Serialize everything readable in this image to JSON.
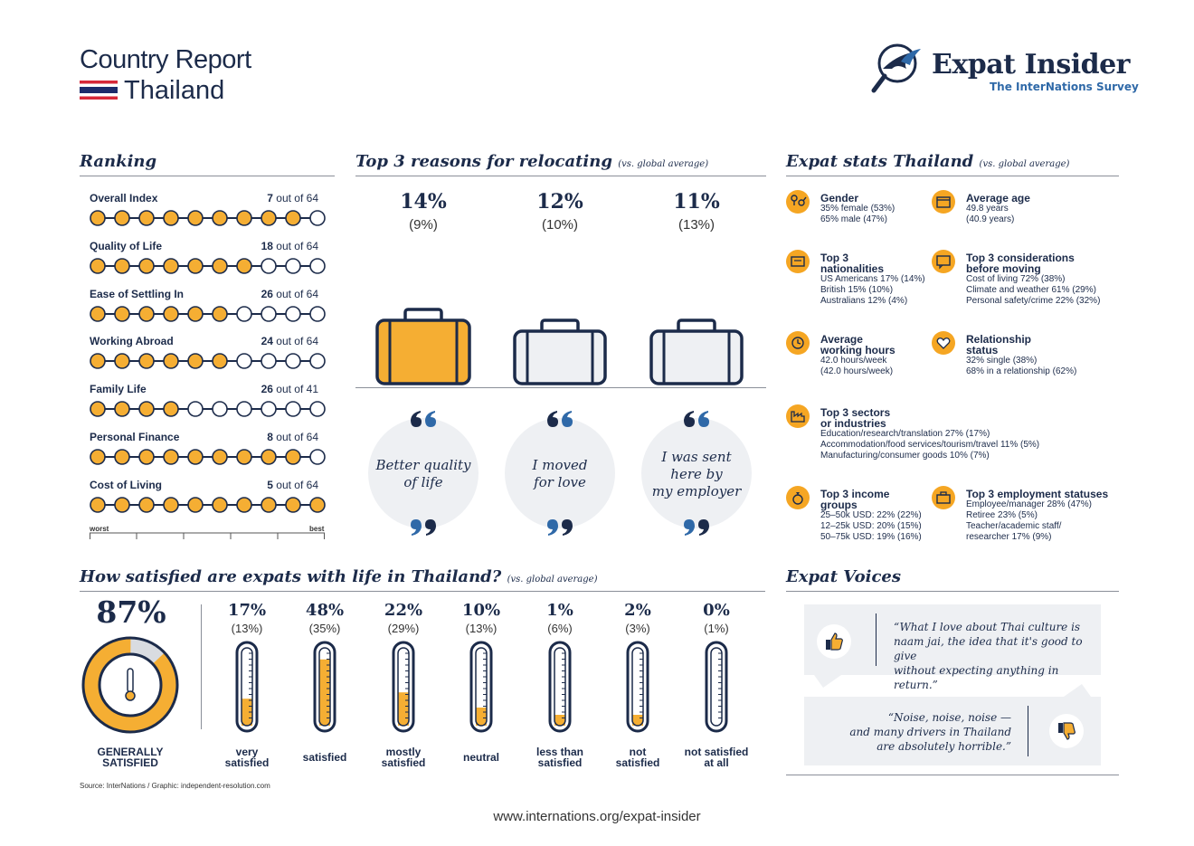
{
  "header": {
    "title": "Country Report",
    "country": "Thailand",
    "logo_name": "Expat Insider",
    "logo_sub": "The InterNations Survey"
  },
  "ranking": {
    "title": "Ranking",
    "items": [
      {
        "label": "Overall Index",
        "rank": "7",
        "suffix": "out of 64",
        "filled": 9
      },
      {
        "label": "Quality of Life",
        "rank": "18",
        "suffix": "out of 64",
        "filled": 7
      },
      {
        "label": "Ease of Settling In",
        "rank": "26",
        "suffix": "out of 64",
        "filled": 6
      },
      {
        "label": "Working Abroad",
        "rank": "24",
        "suffix": "out of 64",
        "filled": 6
      },
      {
        "label": "Family Life",
        "rank": "26",
        "suffix": "out of 41",
        "filled": 4
      },
      {
        "label": "Personal Finance",
        "rank": "8",
        "suffix": "out of 64",
        "filled": 9
      },
      {
        "label": "Cost of Living",
        "rank": "5",
        "suffix": "out of 64",
        "filled": 10
      }
    ],
    "worst": "worst",
    "best": "best"
  },
  "reasons": {
    "title": "Top 3 reasons for relocating",
    "subtitle": "(vs. global average)",
    "items": [
      {
        "pct": "14%",
        "avg": "(9%)",
        "line1": "Better quality",
        "line2": "of life",
        "line3": "",
        "color": "#f5ae33"
      },
      {
        "pct": "12%",
        "avg": "(10%)",
        "line1": "I moved",
        "line2": "for love",
        "line3": "",
        "color": "#eef0f3"
      },
      {
        "pct": "11%",
        "avg": "(13%)",
        "line1": "I was sent",
        "line2": "here by",
        "line3": "my employer",
        "color": "#eef0f3"
      }
    ]
  },
  "stats": {
    "title": "Expat stats Thailand",
    "subtitle": "(vs. global average)",
    "gender": {
      "h1": "Gender",
      "t1": "35% female (53%)",
      "t2": "65% male (47%)",
      "icon": "gender-icon"
    },
    "age": {
      "h1": "Average age",
      "t1": "49.8 years",
      "t2": "(40.9 years)",
      "icon": "calendar-icon"
    },
    "nationalities": {
      "h1": "Top 3",
      "h2": "nationalities",
      "t1": "US Americans 17% (14%)",
      "t2": "British 15% (10%)",
      "t3": "Australians 12% (4%)",
      "icon": "passport-icon"
    },
    "considerations": {
      "h1": "Top 3 considerations",
      "h2": "before moving",
      "t1": "Cost of living 72% (38%)",
      "t2": "Climate and weather 61% (29%)",
      "t3": "Personal safety/crime 22% (32%)",
      "icon": "speech-icon"
    },
    "hours": {
      "h1": "Average",
      "h2": "working hours",
      "t1": "42.0 hours/week",
      "t2": "(42.0 hours/week)",
      "icon": "clock-icon"
    },
    "relationship": {
      "h1": "Relationship",
      "h2": "status",
      "t1": "32% single (38%)",
      "t2": "68% in a relationship (62%)",
      "icon": "heart-icon"
    },
    "sectors": {
      "h1": "Top 3 sectors",
      "h2": "or industries",
      "t1": "Education/research/translation 27% (17%)",
      "t2": "Accommodation/food services/tourism/travel 11% (5%)",
      "t3": "Manufacturing/consumer goods 10% (7%)",
      "icon": "factory-icon"
    },
    "income": {
      "h1": "Top 3 income",
      "h2": "groups",
      "t1": "25–50k USD: 22% (22%)",
      "t2": "12–25k USD: 20% (15%)",
      "t3": "50–75k USD: 19% (16%)",
      "icon": "money-bag-icon"
    },
    "employment": {
      "h1": "Top 3 employment statuses",
      "t1": "Employee/manager 28% (47%)",
      "t2": "Retiree 23% (5%)",
      "t3": "Teacher/academic staff/",
      "t4": "researcher 17% (9%)",
      "icon": "briefcase-icon"
    }
  },
  "satisfaction": {
    "title": "How satisfied are expats with life in Thailand?",
    "subtitle": "(vs. global average)",
    "general_pct": "87%",
    "general_value": 87,
    "general_l1": "GENERALLY",
    "general_l2": "SATISFIED",
    "items": [
      {
        "pct": "17%",
        "avg": "(13%)",
        "l1": "very",
        "l2": "satisfied",
        "value": 17
      },
      {
        "pct": "48%",
        "avg": "(35%)",
        "l1": "satisfied",
        "l2": "",
        "value": 48
      },
      {
        "pct": "22%",
        "avg": "(29%)",
        "l1": "mostly",
        "l2": "satisfied",
        "value": 22
      },
      {
        "pct": "10%",
        "avg": "(13%)",
        "l1": "neutral",
        "l2": "",
        "value": 10
      },
      {
        "pct": "1%",
        "avg": "(6%)",
        "l1": "less than",
        "l2": "satisfied",
        "value": 1
      },
      {
        "pct": "2%",
        "avg": "(3%)",
        "l1": "not",
        "l2": "satisfied",
        "value": 2
      },
      {
        "pct": "0%",
        "avg": "(1%)",
        "l1": "not satisfied",
        "l2": "at all",
        "value": 0
      }
    ]
  },
  "voices": {
    "title": "Expat Voices",
    "q1_l1": "“What I love about Thai culture is",
    "q1_l2": "naam jai, the idea that it's good to give",
    "q1_l3": "without expecting anything in return.”",
    "q2_l1": "“Noise, noise, noise —",
    "q2_l2": "and many drivers in Thailand",
    "q2_l3": "are absolutely horrible.”"
  },
  "footer": {
    "source": "Source: InterNations / Graphic: independent-resolution.com",
    "url": "www.internations.org/expat-insider"
  },
  "colors": {
    "orange": "#f5ae33",
    "navy": "#1c2b4a",
    "blue": "#2f69a8",
    "grey": "#eef0f3"
  }
}
